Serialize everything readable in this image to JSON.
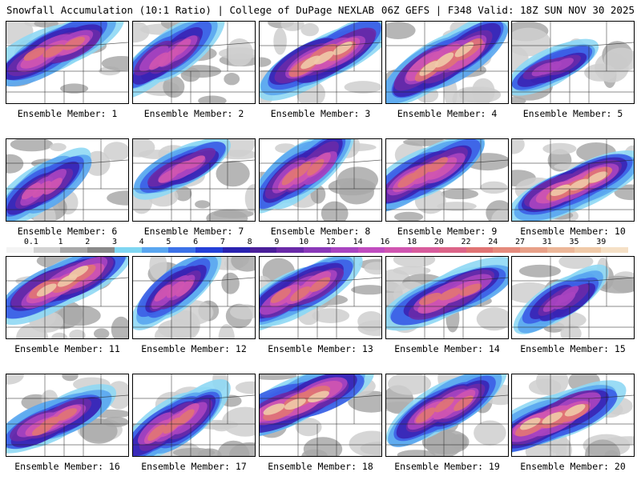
{
  "header": {
    "title_left": "Snowfall Accumulation (10:1 Ratio) | College of DuPage NEXLAB",
    "title_right": "06Z GEFS | F348 Valid: 18Z SUN NOV 30 2025"
  },
  "colorbar": {
    "labels": [
      "0.1",
      "1",
      "2",
      "3",
      "4",
      "5",
      "6",
      "7",
      "8",
      "9",
      "10",
      "12",
      "14",
      "16",
      "18",
      "20",
      "22",
      "24",
      "27",
      "31",
      "35",
      "39"
    ],
    "colors": [
      "#f4f4f4",
      "#d2d2d2",
      "#a8a8a8",
      "#8a8a8a",
      "#7fd6f2",
      "#5aa6f0",
      "#3c72e8",
      "#2440d8",
      "#2a22b0",
      "#4a1f9a",
      "#6a2aa8",
      "#8a38b8",
      "#a844c0",
      "#c04cbf",
      "#d055b0",
      "#d85c9c",
      "#dc6488",
      "#e07474",
      "#e48a7c",
      "#e8a088",
      "#ecb698",
      "#f0caa8",
      "#f5e0c6"
    ]
  },
  "panels": [
    {
      "caption": "Ensemble Member: 1",
      "intensity": 0.72
    },
    {
      "caption": "Ensemble Member: 2",
      "intensity": 0.55
    },
    {
      "caption": "Ensemble Member: 3",
      "intensity": 0.78
    },
    {
      "caption": "Ensemble Member: 4",
      "intensity": 0.82
    },
    {
      "caption": "Ensemble Member: 5",
      "intensity": 0.35
    },
    {
      "caption": "Ensemble Member: 6",
      "intensity": 0.5
    },
    {
      "caption": "Ensemble Member: 7",
      "intensity": 0.45
    },
    {
      "caption": "Ensemble Member: 8",
      "intensity": 0.6
    },
    {
      "caption": "Ensemble Member: 9",
      "intensity": 0.7
    },
    {
      "caption": "Ensemble Member: 10",
      "intensity": 0.75
    },
    {
      "caption": "Ensemble Member: 11",
      "intensity": 0.78
    },
    {
      "caption": "Ensemble Member: 12",
      "intensity": 0.45
    },
    {
      "caption": "Ensemble Member: 13",
      "intensity": 0.7
    },
    {
      "caption": "Ensemble Member: 14",
      "intensity": 0.72
    },
    {
      "caption": "Ensemble Member: 15",
      "intensity": 0.4
    },
    {
      "caption": "Ensemble Member: 16",
      "intensity": 0.6
    },
    {
      "caption": "Ensemble Member: 17",
      "intensity": 0.62
    },
    {
      "caption": "Ensemble Member: 18",
      "intensity": 0.85
    },
    {
      "caption": "Ensemble Member: 19",
      "intensity": 0.68
    },
    {
      "caption": "Ensemble Member: 20",
      "intensity": 0.8
    }
  ]
}
